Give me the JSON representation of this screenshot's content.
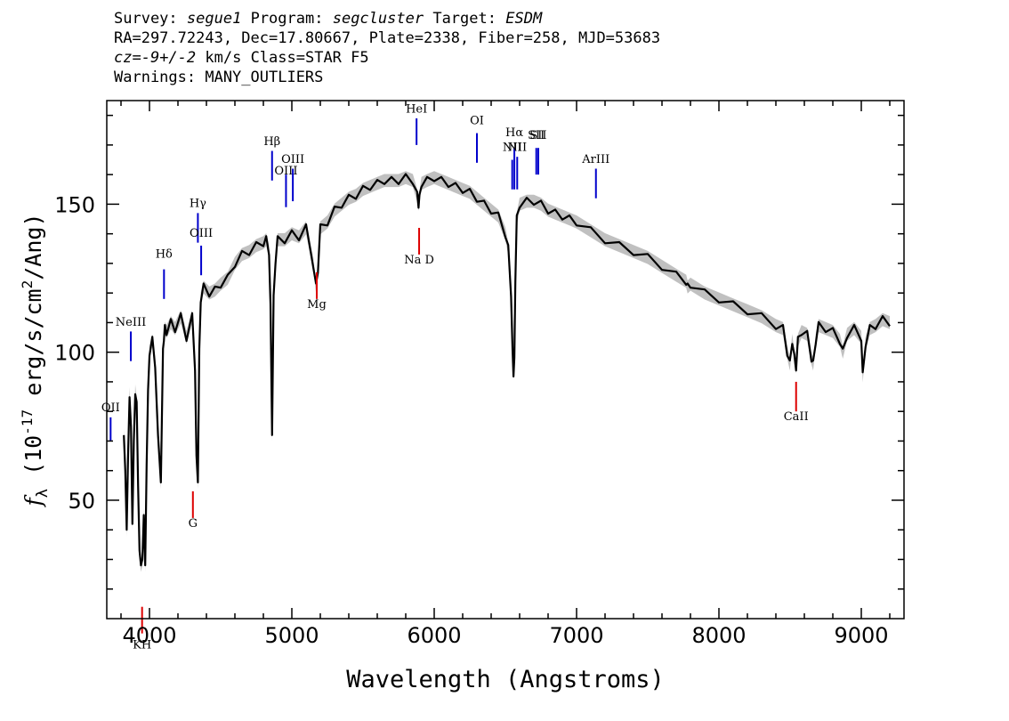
{
  "header": {
    "survey_label": "Survey:",
    "survey": "segue1",
    "program_label": "Program:",
    "program": "segcluster",
    "target_label": "Target:",
    "target": "ESDM",
    "line2": "RA=297.72243, Dec=17.80667, Plate=2338, Fiber=258, MJD=53683",
    "cz_label": "cz=",
    "cz_value": "-9+/-2",
    "line3_rest": "km/s Class=STAR F5",
    "line4": "Warnings: MANY_OUTLIERS"
  },
  "chart_data": {
    "type": "line",
    "title": "",
    "xlabel": "Wavelength (Angstroms)",
    "ylabel": "f_λ (10^-17 erg/s/cm^2/Ang)",
    "xlim": [
      3700,
      9300
    ],
    "ylim": [
      10,
      185
    ],
    "xticks": [
      "4000",
      "5000",
      "6000",
      "7000",
      "8000",
      "9000"
    ],
    "yticks": [
      "50",
      "100",
      "150"
    ],
    "grid": false,
    "colors": {
      "spectrum": "#000000",
      "error": "#b5b5b5",
      "emission": "#0000cc",
      "absorption": "#dd0000"
    },
    "spectrum": {
      "x": [
        3820,
        3830,
        3840,
        3850,
        3860,
        3870,
        3880,
        3890,
        3900,
        3910,
        3920,
        3930,
        3940,
        3950,
        3960,
        3970,
        3980,
        3990,
        4000,
        4020,
        4040,
        4060,
        4080,
        4095,
        4101,
        4108,
        4120,
        4150,
        4180,
        4220,
        4260,
        4300,
        4320,
        4330,
        4340,
        4350,
        4360,
        4380,
        4420,
        4460,
        4500,
        4550,
        4600,
        4650,
        4700,
        4750,
        4800,
        4820,
        4840,
        4850,
        4861,
        4872,
        4885,
        4900,
        4950,
        5000,
        5050,
        5100,
        5150,
        5170,
        5183,
        5200,
        5250,
        5300,
        5350,
        5400,
        5450,
        5500,
        5550,
        5600,
        5650,
        5700,
        5750,
        5800,
        5850,
        5880,
        5890,
        5896,
        5910,
        5950,
        6000,
        6050,
        6100,
        6150,
        6200,
        6250,
        6300,
        6350,
        6400,
        6450,
        6500,
        6520,
        6540,
        6550,
        6557,
        6563,
        6570,
        6580,
        6600,
        6650,
        6700,
        6750,
        6800,
        6850,
        6900,
        6950,
        7000,
        7100,
        7200,
        7300,
        7400,
        7500,
        7600,
        7700,
        7770,
        7780,
        7800,
        7900,
        8000,
        8100,
        8200,
        8300,
        8400,
        8450,
        8480,
        8498,
        8515,
        8530,
        8542,
        8555,
        8580,
        8620,
        8650,
        8662,
        8680,
        8700,
        8750,
        8800,
        8850,
        8870,
        8900,
        8950,
        9000,
        9010,
        9030,
        9060,
        9100,
        9150,
        9200
      ],
      "y": [
        72,
        60,
        40,
        66,
        86,
        75,
        42,
        70,
        87,
        82,
        55,
        33,
        28,
        30,
        45,
        28,
        62,
        86,
        100,
        104,
        96,
        72,
        56,
        100,
        105,
        108,
        107,
        110,
        108,
        112,
        105,
        112,
        95,
        65,
        56,
        100,
        118,
        122,
        120,
        121,
        123,
        125,
        130,
        133,
        134,
        136,
        137,
        138,
        134,
        115,
        72,
        118,
        131,
        138,
        138,
        140,
        139,
        142,
        130,
        122,
        128,
        142,
        144,
        148,
        150,
        152,
        153,
        155,
        156,
        157,
        158,
        158,
        158,
        159,
        158,
        153,
        150,
        152,
        157,
        158,
        159,
        158,
        157,
        156,
        155,
        154,
        152,
        150,
        148,
        146,
        140,
        135,
        120,
        100,
        93,
        97,
        125,
        145,
        150,
        151,
        151,
        150,
        148,
        147,
        146,
        145,
        144,
        141,
        138,
        136,
        134,
        132,
        129,
        126,
        124,
        122,
        123,
        120,
        118,
        116,
        114,
        112,
        109,
        108,
        100,
        96,
        104,
        98,
        95,
        104,
        107,
        106,
        98,
        96,
        104,
        109,
        108,
        107,
        104,
        100,
        106,
        108,
        105,
        92,
        103,
        108,
        109,
        111,
        110
      ]
    },
    "annotations": [
      {
        "text": "OII",
        "x": 3727,
        "kind": "emission"
      },
      {
        "text": "NeIII",
        "x": 3869,
        "kind": "emission"
      },
      {
        "text": "Hδ",
        "x": 4102,
        "kind": "emission"
      },
      {
        "text": "Hγ",
        "x": 4340,
        "kind": "emission"
      },
      {
        "text": "OIII",
        "x": 4363,
        "kind": "emission"
      },
      {
        "text": "Hβ",
        "x": 4861,
        "kind": "emission"
      },
      {
        "text": "OIII",
        "x": 4959,
        "kind": "emission"
      },
      {
        "text": "OIII",
        "x": 5007,
        "kind": "emission"
      },
      {
        "text": "HeI",
        "x": 5876,
        "kind": "emission"
      },
      {
        "text": "OI",
        "x": 6300,
        "kind": "emission"
      },
      {
        "text": "NII",
        "x": 6548,
        "kind": "emission"
      },
      {
        "text": "Hα",
        "x": 6563,
        "kind": "emission"
      },
      {
        "text": "NII",
        "x": 6583,
        "kind": "emission"
      },
      {
        "text": "SII",
        "x": 6717,
        "kind": "emission"
      },
      {
        "text": "SII",
        "x": 6731,
        "kind": "emission"
      },
      {
        "text": "ArIII",
        "x": 7136,
        "kind": "emission"
      },
      {
        "text": "KH",
        "x": 3948,
        "kind": "absorption"
      },
      {
        "text": "G",
        "x": 4305,
        "kind": "absorption"
      },
      {
        "text": "Mg",
        "x": 5175,
        "kind": "absorption"
      },
      {
        "text": "Na D",
        "x": 5894,
        "kind": "absorption"
      },
      {
        "text": "CaII",
        "x": 8542,
        "kind": "absorption"
      }
    ],
    "annotation_layout": [
      {
        "line": [
          78,
          70
        ],
        "label": 80
      },
      {
        "line": [
          107,
          97
        ],
        "label": 109
      },
      {
        "line": [
          128,
          118
        ],
        "label": 132
      },
      {
        "line": [
          147,
          137
        ],
        "label": 149
      },
      {
        "line": [
          136,
          126
        ],
        "label": 139
      },
      {
        "line": [
          168,
          158
        ],
        "label": 170
      },
      {
        "line": [
          160,
          149
        ],
        "label": 160
      },
      {
        "line": [
          162,
          151
        ],
        "label": 164
      },
      {
        "line": [
          179,
          170
        ],
        "label": 181
      },
      {
        "line": [
          174,
          164
        ],
        "label": 177
      },
      {
        "line": [
          165,
          155
        ],
        "label": 168
      },
      {
        "line": [
          169,
          155
        ],
        "label": 173
      },
      {
        "line": [
          166,
          155
        ],
        "label": 168
      },
      {
        "line": [
          169,
          160
        ],
        "label": 172
      },
      {
        "line": [
          169,
          160
        ],
        "label": 172
      },
      {
        "line": [
          162,
          152
        ],
        "label": 164
      },
      {
        "line": [
          14,
          5
        ],
        "label": 0
      },
      {
        "line": [
          53,
          44
        ],
        "label": 41
      },
      {
        "line": [
          127,
          118
        ],
        "label": 115
      },
      {
        "line": [
          142,
          133
        ],
        "label": 130
      },
      {
        "line": [
          90,
          80
        ],
        "label": 77
      }
    ]
  }
}
